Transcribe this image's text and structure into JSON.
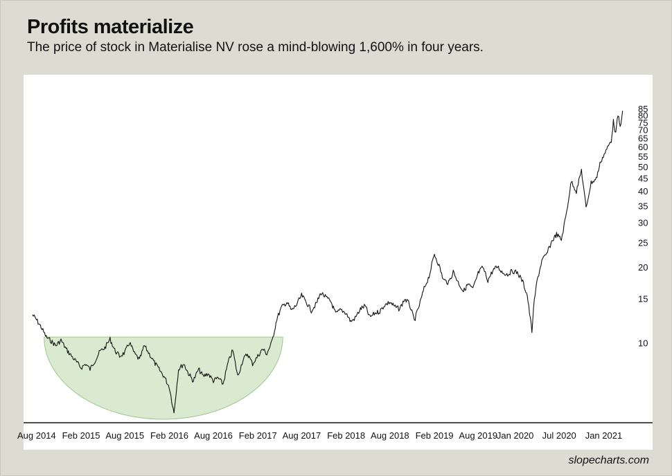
{
  "header": {
    "title": "Profits materialize",
    "subtitle": "The price of stock in Materialise NV rose a mind-blowing 1,600% in four years."
  },
  "footer": {
    "credit": "slopecharts.com"
  },
  "colors": {
    "background": "#dcdcd3",
    "plot": "#ffffff",
    "line": "#111111",
    "bowl_fill": "#d9ead0",
    "bowl_stroke": "#9cc88a"
  },
  "chart_data": {
    "type": "line",
    "title": "Profits materialize",
    "subtitle": "The price of stock in Materialise NV rose a mind-blowing 1,600% in four years.",
    "xlabel": "",
    "ylabel": "",
    "y_scale": "log",
    "ylim": [
      5,
      85
    ],
    "xlim": [
      "2014-07-01",
      "2021-04-10"
    ],
    "grid": false,
    "legend": "none",
    "x_ticks": [
      {
        "date": "2014-08-01",
        "label": "Aug 2014"
      },
      {
        "date": "2015-02-01",
        "label": "Feb 2015"
      },
      {
        "date": "2015-08-01",
        "label": "Aug 2015"
      },
      {
        "date": "2016-02-01",
        "label": "Feb 2016"
      },
      {
        "date": "2016-08-01",
        "label": "Aug 2016"
      },
      {
        "date": "2017-02-01",
        "label": "Feb 2017"
      },
      {
        "date": "2017-08-01",
        "label": "Aug 2017"
      },
      {
        "date": "2018-02-01",
        "label": "Feb 2018"
      },
      {
        "date": "2018-08-01",
        "label": "Aug 2018"
      },
      {
        "date": "2019-02-01",
        "label": "Feb 2019"
      },
      {
        "date": "2019-08-01",
        "label": "Aug 2019"
      },
      {
        "date": "2020-01-01",
        "label": "Jan 2020"
      },
      {
        "date": "2020-07-01",
        "label": "Jul 2020"
      },
      {
        "date": "2021-01-01",
        "label": "Jan 2021"
      }
    ],
    "y_ticks": [
      10,
      15,
      20,
      25,
      30,
      35,
      40,
      45,
      50,
      55,
      60,
      65,
      70,
      75,
      80,
      85
    ],
    "annotations": [
      {
        "type": "rounding-bottom",
        "start": "2014-09-01",
        "end": "2017-05-15",
        "top": 10.6,
        "bottom": 5.0
      }
    ],
    "series": [
      {
        "x": [
          "2014-07-15",
          "2014-08-01",
          "2014-08-20",
          "2014-09-10",
          "2014-10-01",
          "2014-10-20",
          "2014-11-10",
          "2014-12-01",
          "2014-12-20",
          "2015-01-10",
          "2015-02-01",
          "2015-02-20",
          "2015-03-10",
          "2015-04-01",
          "2015-04-20",
          "2015-05-10",
          "2015-06-01",
          "2015-06-20",
          "2015-07-10",
          "2015-08-01",
          "2015-08-20",
          "2015-09-10",
          "2015-10-01",
          "2015-10-20",
          "2015-11-10",
          "2015-12-01",
          "2015-12-20",
          "2016-01-10",
          "2016-02-01",
          "2016-02-20",
          "2016-03-10",
          "2016-04-01",
          "2016-04-20",
          "2016-05-10",
          "2016-06-01",
          "2016-06-20",
          "2016-07-10",
          "2016-08-01",
          "2016-08-20",
          "2016-09-10",
          "2016-10-01",
          "2016-10-20",
          "2016-11-10",
          "2016-12-01",
          "2016-12-20",
          "2017-01-10",
          "2017-02-01",
          "2017-02-20",
          "2017-03-10",
          "2017-04-01",
          "2017-04-20",
          "2017-05-10",
          "2017-06-01",
          "2017-06-20",
          "2017-07-10",
          "2017-08-01",
          "2017-08-20",
          "2017-09-10",
          "2017-10-01",
          "2017-10-20",
          "2017-11-10",
          "2017-12-01",
          "2017-12-20",
          "2018-01-10",
          "2018-02-01",
          "2018-02-20",
          "2018-03-10",
          "2018-04-01",
          "2018-04-20",
          "2018-05-10",
          "2018-06-01",
          "2018-06-20",
          "2018-07-10",
          "2018-08-01",
          "2018-08-20",
          "2018-09-10",
          "2018-10-01",
          "2018-10-20",
          "2018-11-10",
          "2018-12-01",
          "2018-12-20",
          "2019-01-10",
          "2019-02-01",
          "2019-02-20",
          "2019-03-10",
          "2019-04-01",
          "2019-04-20",
          "2019-05-10",
          "2019-06-01",
          "2019-06-20",
          "2019-07-10",
          "2019-08-01",
          "2019-08-20",
          "2019-09-10",
          "2019-10-01",
          "2019-10-20",
          "2019-11-10",
          "2019-12-01",
          "2019-12-20",
          "2020-01-10",
          "2020-02-01",
          "2020-02-20",
          "2020-03-10",
          "2020-03-20",
          "2020-04-01",
          "2020-04-20",
          "2020-05-10",
          "2020-06-01",
          "2020-06-20",
          "2020-07-10",
          "2020-08-01",
          "2020-08-20",
          "2020-09-10",
          "2020-10-01",
          "2020-10-20",
          "2020-11-10",
          "2020-12-01",
          "2020-12-20",
          "2021-01-10",
          "2021-02-01",
          "2021-02-10",
          "2021-02-20",
          "2021-03-01",
          "2021-03-10",
          "2021-03-20"
        ],
        "y": [
          13.0,
          12.4,
          11.6,
          10.6,
          10.2,
          9.8,
          10.3,
          9.5,
          9.0,
          8.5,
          8.0,
          8.3,
          7.9,
          8.6,
          9.3,
          9.6,
          10.4,
          9.4,
          8.9,
          9.2,
          10.1,
          9.1,
          8.6,
          9.8,
          9.1,
          8.4,
          7.9,
          7.4,
          6.7,
          5.3,
          7.9,
          8.3,
          7.6,
          7.1,
          7.9,
          7.4,
          7.6,
          7.1,
          7.3,
          6.9,
          8.4,
          9.4,
          7.4,
          8.6,
          9.1,
          8.3,
          8.9,
          9.5,
          9.1,
          10.2,
          12.5,
          13.9,
          14.6,
          13.5,
          14.2,
          15.5,
          14.6,
          13.5,
          14.4,
          15.9,
          15.2,
          14.6,
          13.1,
          13.6,
          13.2,
          12.2,
          12.6,
          13.7,
          14.1,
          12.7,
          13.2,
          13.4,
          14.2,
          14.6,
          14.0,
          13.7,
          15.0,
          14.4,
          12.3,
          14.2,
          16.5,
          18.5,
          22.6,
          20.4,
          17.9,
          17.4,
          19.3,
          17.5,
          16.1,
          17.2,
          16.4,
          19.0,
          20.1,
          17.8,
          19.5,
          20.2,
          19.1,
          18.8,
          19.4,
          19.1,
          17.6,
          15.5,
          11.2,
          14.8,
          17.8,
          21.3,
          22.6,
          25.5,
          27.1,
          25.8,
          33.4,
          44.2,
          40.1,
          48.8,
          34.5,
          43.5,
          45.0,
          53.0,
          58.0,
          64.0,
          76.0,
          68.0,
          81.0,
          72.0,
          84.0
        ]
      }
    ]
  }
}
